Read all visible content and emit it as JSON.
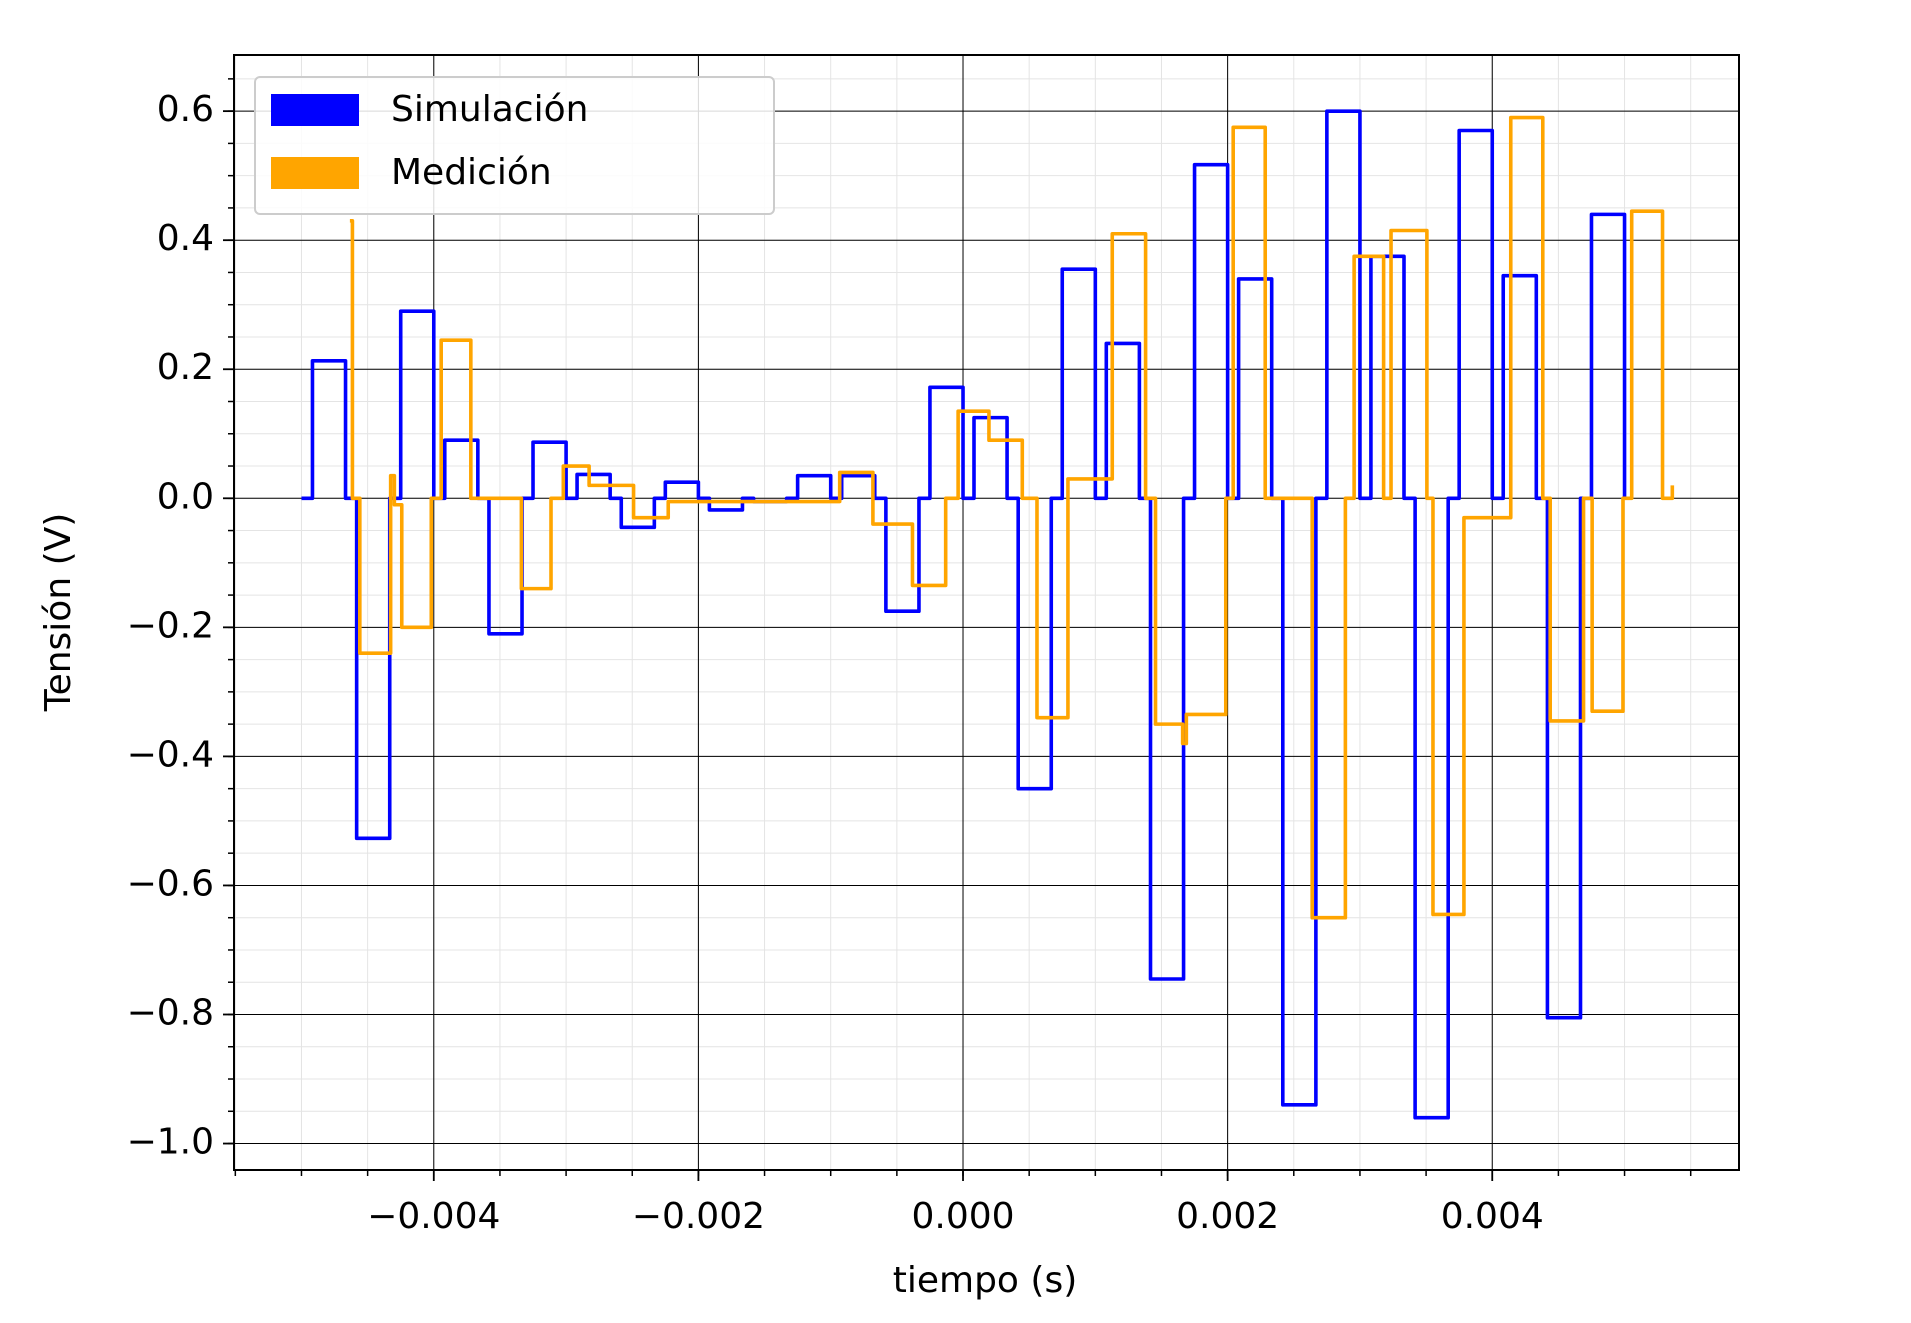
{
  "chart_data": {
    "type": "line",
    "drawstyle": "steps-post",
    "xlabel": "tiempo (s)",
    "ylabel": "Tensión (V)",
    "xlim": [
      -0.00551,
      0.005865
    ],
    "ylim": [
      -1.041,
      0.687
    ],
    "xticks": [
      {
        "value": -0.004,
        "label": "−0.004"
      },
      {
        "value": -0.002,
        "label": "−0.002"
      },
      {
        "value": 0,
        "label": "0.000"
      },
      {
        "value": 0.002,
        "label": "0.002"
      },
      {
        "value": 0.004,
        "label": "0.004"
      }
    ],
    "yticks": [
      {
        "value": -1.0,
        "label": "−1.0"
      },
      {
        "value": -0.8,
        "label": "−0.8"
      },
      {
        "value": -0.6,
        "label": "−0.6"
      },
      {
        "value": -0.4,
        "label": "−0.4"
      },
      {
        "value": -0.2,
        "label": "−0.2"
      },
      {
        "value": 0,
        "label": "0.0"
      },
      0.2,
      0.4,
      0.6
    ],
    "grid": true,
    "minor_grid": true,
    "legend": "upper left",
    "series": [
      {
        "name": "Simulación",
        "color": "#0000ff",
        "x": [
          -0.005,
          -0.004917,
          -0.004667,
          -0.004583,
          -0.004333,
          -0.00425,
          -0.004,
          -0.003917,
          -0.003667,
          -0.003583,
          -0.003333,
          -0.00325,
          -0.003,
          -0.002917,
          -0.002667,
          -0.002583,
          -0.002333,
          -0.00225,
          -0.002,
          -0.001917,
          -0.001667,
          -0.001583,
          -0.001333,
          -0.00125,
          -0.001,
          -0.000917,
          -0.000667,
          -0.000583,
          -0.000333,
          -0.00025,
          0,
          8.3e-05,
          0.000333,
          0.000417,
          0.000667,
          0.00075,
          0.001,
          0.001083,
          0.001333,
          0.001417,
          0.001667,
          0.00175,
          0.002,
          0.002083,
          0.002333,
          0.002417,
          0.002667,
          0.00275,
          0.003,
          0.003083,
          0.003333,
          0.003417,
          0.003667,
          0.00375,
          0.004,
          0.004083,
          0.004333,
          0.004417,
          0.004667,
          0.00475,
          0.005
        ],
        "values": [
          0,
          0.213,
          0,
          -0.527,
          0,
          0.29,
          0,
          0.09,
          0,
          -0.21,
          0,
          0.087,
          0,
          0.037,
          0,
          -0.045,
          0,
          0.025,
          0,
          -0.018,
          0,
          -0.005,
          0,
          0.035,
          0,
          0.035,
          0,
          -0.175,
          0,
          0.172,
          0,
          0.125,
          0,
          -0.45,
          0,
          0.355,
          0,
          0.24,
          0,
          -0.745,
          0,
          0.517,
          0,
          0.34,
          0,
          -0.94,
          0,
          0.6,
          0,
          0.375,
          0,
          -0.96,
          0,
          0.57,
          0,
          0.345,
          0,
          -0.805,
          0,
          0.44,
          0
        ]
      },
      {
        "name": "Medición",
        "color": "#ffa500",
        "x": [
          -0.004634,
          -0.004615,
          -0.004559,
          -0.004326,
          -0.004298,
          -0.004242,
          -0.004019,
          -0.003944,
          -0.00372,
          -0.003338,
          -0.003114,
          -0.003021,
          -0.002826,
          -0.00249,
          -0.002228,
          -0.000932,
          -0.000681,
          -0.000382,
          -0.000131,
          -3.7e-05,
          0.000196,
          0.000448,
          0.000559,
          0.000793,
          0.001128,
          0.00138,
          0.001455,
          0.00166,
          0.001688,
          0.001986,
          0.002042,
          0.002284,
          0.002639,
          0.00289,
          0.002956,
          0.003179,
          0.003235,
          0.003506,
          0.003552,
          0.003786,
          0.00414,
          0.004382,
          0.004438,
          0.00469,
          0.004755,
          0.004988,
          0.005054,
          0.005287,
          0.005361
        ],
        "values": [
          0.43,
          0,
          -0.24,
          0.035,
          -0.01,
          -0.2,
          0,
          0.245,
          0,
          -0.14,
          0,
          0.05,
          0.02,
          -0.03,
          -0.005,
          0.04,
          -0.04,
          -0.135,
          0,
          0.135,
          0.09,
          0,
          -0.34,
          0.03,
          0.41,
          0,
          -0.35,
          -0.38,
          -0.335,
          0,
          0.575,
          0,
          -0.65,
          0,
          0.375,
          0,
          0.415,
          0,
          -0.645,
          -0.03,
          0.59,
          0,
          -0.345,
          0,
          -0.33,
          0,
          0.445,
          0,
          0.02
        ]
      }
    ]
  }
}
